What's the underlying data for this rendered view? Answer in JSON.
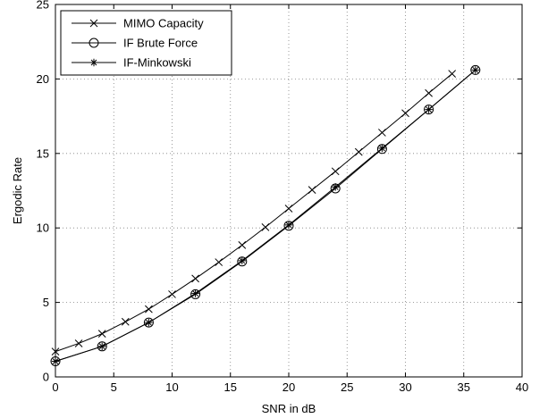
{
  "chart_data": {
    "type": "line",
    "title": "",
    "xlabel": "SNR in dB",
    "ylabel": "Ergodic Rate",
    "xlim": [
      0,
      40
    ],
    "ylim": [
      0,
      25
    ],
    "xticks": [
      0,
      5,
      10,
      15,
      20,
      25,
      30,
      35,
      40
    ],
    "yticks": [
      0,
      5,
      10,
      15,
      20,
      25
    ],
    "grid": true,
    "legend_position": "top-left",
    "series": [
      {
        "name": "MIMO Capacity",
        "marker": "x",
        "color": "#000000",
        "x": [
          0,
          2,
          4,
          6,
          8,
          10,
          12,
          14,
          16,
          18,
          20,
          22,
          24,
          26,
          28,
          30,
          32,
          34
        ],
        "y": [
          1.7,
          2.25,
          2.9,
          3.7,
          4.55,
          5.55,
          6.6,
          7.7,
          8.85,
          10.05,
          11.3,
          12.55,
          13.8,
          15.1,
          16.4,
          17.7,
          19.05,
          20.35
        ]
      },
      {
        "name": "IF Brute Force",
        "marker": "circle",
        "color": "#000000",
        "x": [
          0,
          4,
          8,
          12,
          16,
          20,
          24,
          28,
          32,
          36
        ],
        "y": [
          1.05,
          2.05,
          3.65,
          5.55,
          7.75,
          10.15,
          12.65,
          15.3,
          17.95,
          20.6
        ]
      },
      {
        "name": "IF-Minkowski",
        "marker": "star",
        "color": "#000000",
        "x": [
          0,
          4,
          8,
          12,
          16,
          20,
          24,
          28,
          32,
          36
        ],
        "y": [
          1.05,
          2.05,
          3.65,
          5.6,
          7.8,
          10.2,
          12.75,
          15.35,
          17.95,
          20.6
        ]
      }
    ]
  }
}
